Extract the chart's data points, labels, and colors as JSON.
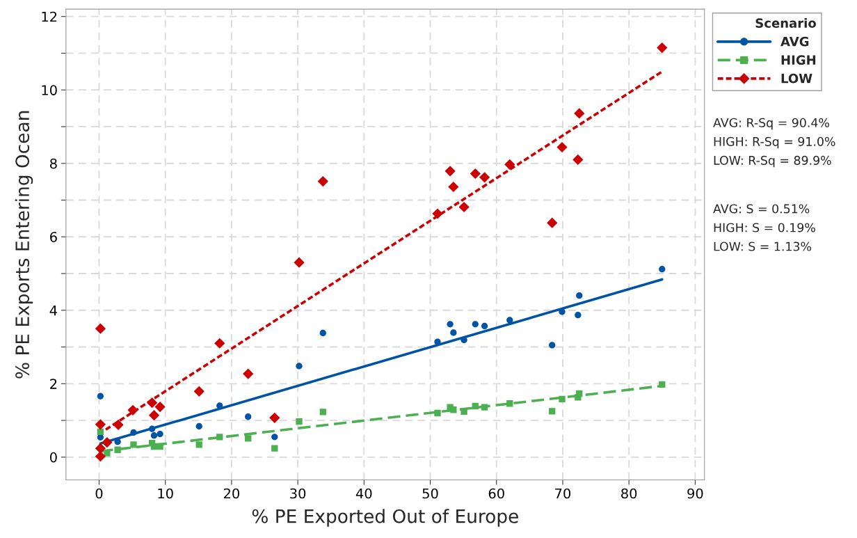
{
  "chart_data": {
    "type": "scatter",
    "xlabel": "% PE Exported Out of Europe",
    "ylabel": "% PE Exports Entering Ocean",
    "legend_title": "Scenario",
    "legend": "top right",
    "grid": true,
    "xlim": [
      -5,
      91.4
    ],
    "ylim": [
      -0.62,
      12.2
    ],
    "xticks": [
      0,
      10,
      20,
      30,
      40,
      50,
      60,
      70,
      80,
      90
    ],
    "yticks": [
      0,
      {
        "value": 1,
        "label": null
      },
      2,
      {
        "value": 3,
        "label": null
      },
      4,
      {
        "value": 5,
        "label": null
      },
      6,
      {
        "value": 7,
        "label": null
      },
      8,
      {
        "value": 9,
        "label": null
      },
      10,
      {
        "value": 11,
        "label": null
      },
      12
    ],
    "series": [
      {
        "name": "AVG",
        "marker": "circle",
        "color": "#0054a6",
        "x": [
          0.2,
          0.2,
          2.8,
          5.2,
          8.0,
          8.3,
          9.2,
          15.1,
          18.2,
          22.5,
          26.5,
          30.2,
          33.8,
          51.1,
          53.0,
          53.5,
          55.1,
          56.8,
          58.2,
          62.0,
          68.4,
          69.9,
          72.3,
          72.5,
          85.0
        ],
        "values": [
          1.66,
          0.54,
          0.42,
          0.67,
          0.77,
          0.59,
          0.63,
          0.84,
          1.4,
          1.1,
          0.55,
          2.48,
          3.38,
          3.14,
          3.62,
          3.39,
          3.19,
          3.62,
          3.57,
          3.73,
          3.05,
          3.96,
          3.87,
          4.4,
          5.12
        ]
      },
      {
        "type": "line",
        "line_style": "solid",
        "color": "#0054a6",
        "x": [
          0.2,
          85.0
        ],
        "values": [
          0.37,
          4.84
        ]
      },
      {
        "name": "HIGH",
        "marker": "square",
        "color": "#4caf50",
        "x": [
          0.2,
          1.2,
          2.8,
          5.2,
          8.0,
          8.3,
          9.2,
          15.1,
          18.2,
          22.5,
          26.5,
          30.2,
          33.8,
          51.1,
          53.0,
          53.5,
          55.1,
          56.8,
          58.2,
          62.0,
          68.4,
          69.9,
          72.3,
          72.5,
          85.0
        ],
        "values": [
          0.69,
          0.11,
          0.2,
          0.34,
          0.38,
          0.29,
          0.29,
          0.34,
          0.55,
          0.51,
          0.24,
          0.97,
          1.23,
          1.2,
          1.36,
          1.29,
          1.24,
          1.39,
          1.36,
          1.46,
          1.25,
          1.58,
          1.63,
          1.73,
          1.98
        ]
      },
      {
        "type": "line",
        "line_style": "dashed",
        "color": "#4caf50",
        "x": [
          0.2,
          85.0
        ],
        "values": [
          0.16,
          1.94
        ]
      },
      {
        "name": "LOW",
        "marker": "diamond",
        "color": "#cc0000",
        "x": [
          0.2,
          0.2,
          0.2,
          0.2,
          1.2,
          2.9,
          5.1,
          8.0,
          8.3,
          9.2,
          15.1,
          18.2,
          22.5,
          26.5,
          30.2,
          33.8,
          51.1,
          53.0,
          53.5,
          55.1,
          56.8,
          58.2,
          62.0,
          68.4,
          69.9,
          72.3,
          72.5,
          85.0
        ],
        "values": [
          3.5,
          0.89,
          0.24,
          0.02,
          0.4,
          0.88,
          1.28,
          1.48,
          1.14,
          1.37,
          1.79,
          3.1,
          2.27,
          1.07,
          5.3,
          7.51,
          6.63,
          7.79,
          7.36,
          6.81,
          7.72,
          7.62,
          7.97,
          6.38,
          8.44,
          8.1,
          9.36,
          11.15
        ]
      },
      {
        "type": "line",
        "line_style": "dotted",
        "color": "#cc0000",
        "x": [
          1.0,
          85.0
        ],
        "values": [
          0.75,
          10.5
        ]
      }
    ],
    "annotations": [
      "AVG: R-Sq = 90.4%",
      "HIGH: R-Sq = 91.0%",
      "LOW: R-Sq = 89.9%",
      "AVG: S = 0.51%",
      "HIGH: S = 0.19%",
      "LOW: S = 1.13%"
    ]
  }
}
